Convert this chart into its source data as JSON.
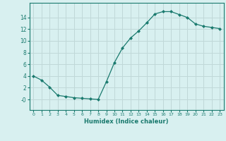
{
  "x": [
    0,
    1,
    2,
    3,
    4,
    5,
    6,
    7,
    8,
    9,
    10,
    11,
    12,
    13,
    14,
    15,
    16,
    17,
    18,
    19,
    20,
    21,
    22,
    23
  ],
  "y": [
    4.0,
    3.3,
    2.1,
    0.7,
    0.5,
    0.3,
    0.2,
    0.1,
    0.0,
    3.0,
    6.3,
    8.8,
    10.5,
    11.7,
    13.1,
    14.6,
    15.0,
    15.0,
    14.5,
    14.0,
    12.9,
    12.5,
    12.3,
    12.1
  ],
  "line_color": "#1a7a6e",
  "marker": "D",
  "marker_size": 2.0,
  "bg_color": "#d8f0f0",
  "grid_color": "#c0d8d8",
  "xlabel": "Humidex (Indice chaleur)",
  "xlim": [
    -0.5,
    23.5
  ],
  "ylim": [
    -1.8,
    16.5
  ],
  "yticks": [
    0,
    2,
    4,
    6,
    8,
    10,
    12,
    14
  ],
  "ytick_labels": [
    "-0",
    "2",
    "4",
    "6",
    "8",
    "10",
    "12",
    "14"
  ],
  "xticks": [
    0,
    1,
    2,
    3,
    4,
    5,
    6,
    7,
    8,
    9,
    10,
    11,
    12,
    13,
    14,
    15,
    16,
    17,
    18,
    19,
    20,
    21,
    22,
    23
  ]
}
